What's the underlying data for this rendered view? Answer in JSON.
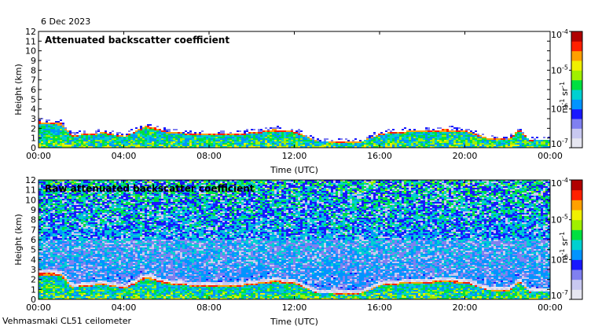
{
  "date_label": "6 Dec 2023",
  "instrument_label": "Vehmasmaki CL51 ceilometer",
  "chart_data": [
    {
      "type": "heatmap",
      "title": "Attenuated backscatter coefficient",
      "xlabel": "Time (UTC)",
      "ylabel": "Height (km)",
      "xticks": [
        "00:00",
        "04:00",
        "08:00",
        "12:00",
        "16:00",
        "20:00",
        "00:00"
      ],
      "xlim_hours": [
        0,
        24
      ],
      "yticks": [
        0,
        1,
        2,
        3,
        4,
        5,
        6,
        7,
        8,
        9,
        10,
        11,
        12
      ],
      "ylim": [
        0,
        12
      ],
      "colorbar": {
        "scale": "log",
        "range": [
          1e-07,
          0.0001
        ],
        "ticks": [
          "10-7",
          "10-6",
          "10-5",
          "10-4"
        ],
        "unit": "m-1 sr-1"
      },
      "boundary_layer_top_km": [
        {
          "t": 0.0,
          "h": 2.6
        },
        {
          "t": 1.0,
          "h": 2.5
        },
        {
          "t": 1.5,
          "h": 1.2
        },
        {
          "t": 2.5,
          "h": 1.4
        },
        {
          "t": 3.0,
          "h": 1.5
        },
        {
          "t": 4.0,
          "h": 1.1
        },
        {
          "t": 5.0,
          "h": 2.2
        },
        {
          "t": 6.0,
          "h": 1.6
        },
        {
          "t": 7.0,
          "h": 1.4
        },
        {
          "t": 8.0,
          "h": 1.4
        },
        {
          "t": 9.0,
          "h": 1.3
        },
        {
          "t": 10.0,
          "h": 1.5
        },
        {
          "t": 11.0,
          "h": 1.8
        },
        {
          "t": 12.0,
          "h": 1.6
        },
        {
          "t": 13.0,
          "h": 0.6
        },
        {
          "t": 14.0,
          "h": 0.5
        },
        {
          "t": 15.0,
          "h": 0.5
        },
        {
          "t": 16.0,
          "h": 1.4
        },
        {
          "t": 17.0,
          "h": 1.6
        },
        {
          "t": 18.0,
          "h": 1.7
        },
        {
          "t": 19.0,
          "h": 1.8
        },
        {
          "t": 20.0,
          "h": 1.7
        },
        {
          "t": 21.0,
          "h": 0.9
        },
        {
          "t": 22.0,
          "h": 0.8
        },
        {
          "t": 22.5,
          "h": 1.8
        },
        {
          "t": 23.0,
          "h": 0.7
        },
        {
          "t": 24.0,
          "h": 0.8
        }
      ]
    },
    {
      "type": "heatmap",
      "title": "Raw attenuated backscatter coefficient",
      "xlabel": "Time (UTC)",
      "ylabel": "Height (km)",
      "xticks": [
        "00:00",
        "04:00",
        "08:00",
        "12:00",
        "16:00",
        "20:00",
        "00:00"
      ],
      "xlim_hours": [
        0,
        24
      ],
      "yticks": [
        0,
        1,
        2,
        3,
        4,
        5,
        6,
        7,
        8,
        9,
        10,
        11,
        12
      ],
      "ylim": [
        0,
        12
      ],
      "colorbar": {
        "scale": "log",
        "range": [
          1e-07,
          0.0001
        ],
        "ticks": [
          "10-7",
          "10-6",
          "10-5",
          "10-4"
        ],
        "unit": "m-1 sr-1"
      }
    }
  ]
}
